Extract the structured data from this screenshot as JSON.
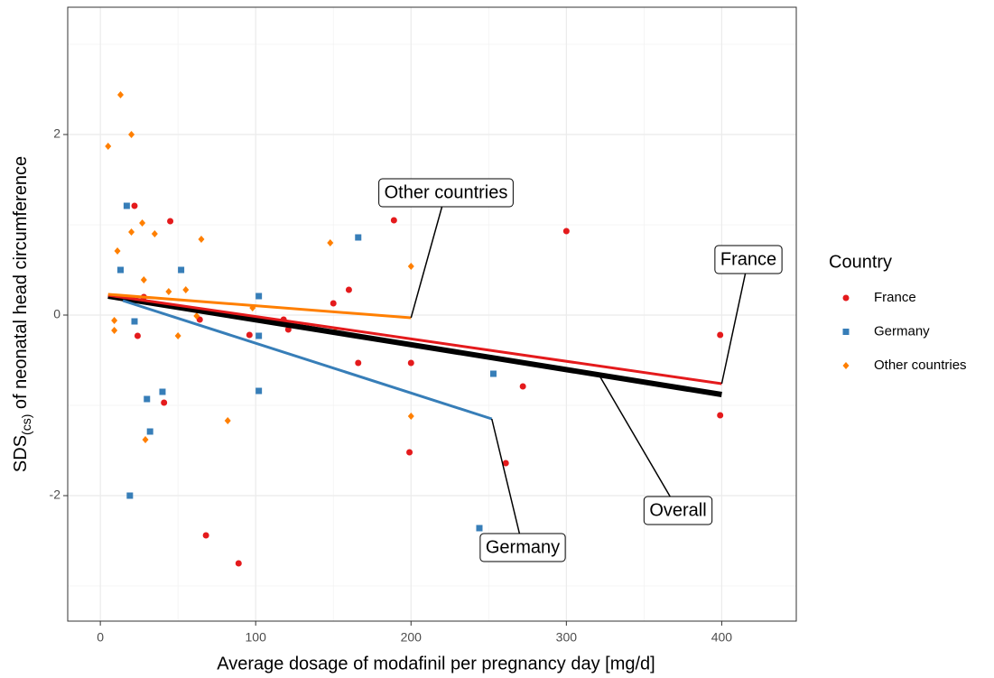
{
  "chart_data": {
    "type": "scatter",
    "x_label": "Average dosage of modafinil per pregnancy day [mg/d]",
    "y_label": {
      "main": "SDS",
      "sub": "(cs)",
      "rest": " of neonatal head circumference"
    },
    "legend_title": "Country",
    "legend_position": "right",
    "grid": true,
    "xlim": [
      -21,
      448
    ],
    "ylim": [
      -3.39,
      3.41
    ],
    "xticks": [
      0,
      100,
      200,
      300,
      400
    ],
    "yticks": [
      -2,
      0,
      2
    ],
    "xminor_ticks": [
      50,
      150,
      250,
      350
    ],
    "yminor_ticks": [
      -3,
      -1,
      1,
      3
    ],
    "series": [
      {
        "name": "France",
        "color": "#e41a1c",
        "shape": "circle",
        "x": [
          22,
          45,
          189,
          200,
          300,
          160,
          150,
          28,
          64,
          24,
          96,
          118,
          121,
          166,
          200,
          41,
          272,
          399,
          399,
          199,
          261,
          68,
          89
        ],
        "values": [
          1.21,
          1.04,
          1.05,
          1.42,
          0.93,
          0.28,
          0.13,
          0.2,
          -0.05,
          -0.23,
          -0.22,
          -0.05,
          -0.16,
          -0.53,
          -0.53,
          -0.97,
          -0.79,
          -0.22,
          -1.11,
          -1.52,
          -1.64,
          -2.44,
          -2.75
        ],
        "fit": {
          "x": [
            5,
            400
          ],
          "y": [
            0.22,
            -0.76
          ]
        }
      },
      {
        "name": "Germany",
        "color": "#377eb8",
        "shape": "square",
        "x": [
          17,
          13,
          52,
          102,
          166,
          22,
          102,
          30,
          40,
          32,
          102,
          253,
          19,
          244
        ],
        "values": [
          1.21,
          0.5,
          0.5,
          0.21,
          0.86,
          -0.07,
          -0.23,
          -0.93,
          -0.85,
          -1.29,
          -0.84,
          -0.65,
          -2.0,
          -2.36
        ],
        "fit": {
          "x": [
            14.5,
            252
          ],
          "y": [
            0.16,
            -1.15
          ]
        }
      },
      {
        "name": "Other countries",
        "color": "#ff7f00",
        "shape": "diamond",
        "x": [
          13,
          20,
          5,
          27,
          20,
          35,
          11,
          65,
          148,
          200,
          28,
          44,
          55,
          62,
          98,
          9,
          9,
          50,
          151,
          200,
          82,
          29
        ],
        "values": [
          2.44,
          2.0,
          1.87,
          1.02,
          0.92,
          0.9,
          0.71,
          0.84,
          0.8,
          0.54,
          0.39,
          0.26,
          0.28,
          -0.01,
          0.08,
          -0.06,
          -0.17,
          -0.23,
          -0.18,
          -1.12,
          -1.17,
          -1.38
        ],
        "fit": {
          "x": [
            5,
            200
          ],
          "y": [
            0.23,
            -0.03
          ]
        }
      }
    ],
    "overall_fit": {
      "label": "Overall",
      "color": "#000000",
      "x": [
        5,
        400
      ],
      "y": [
        0.21,
        -0.88
      ]
    }
  }
}
